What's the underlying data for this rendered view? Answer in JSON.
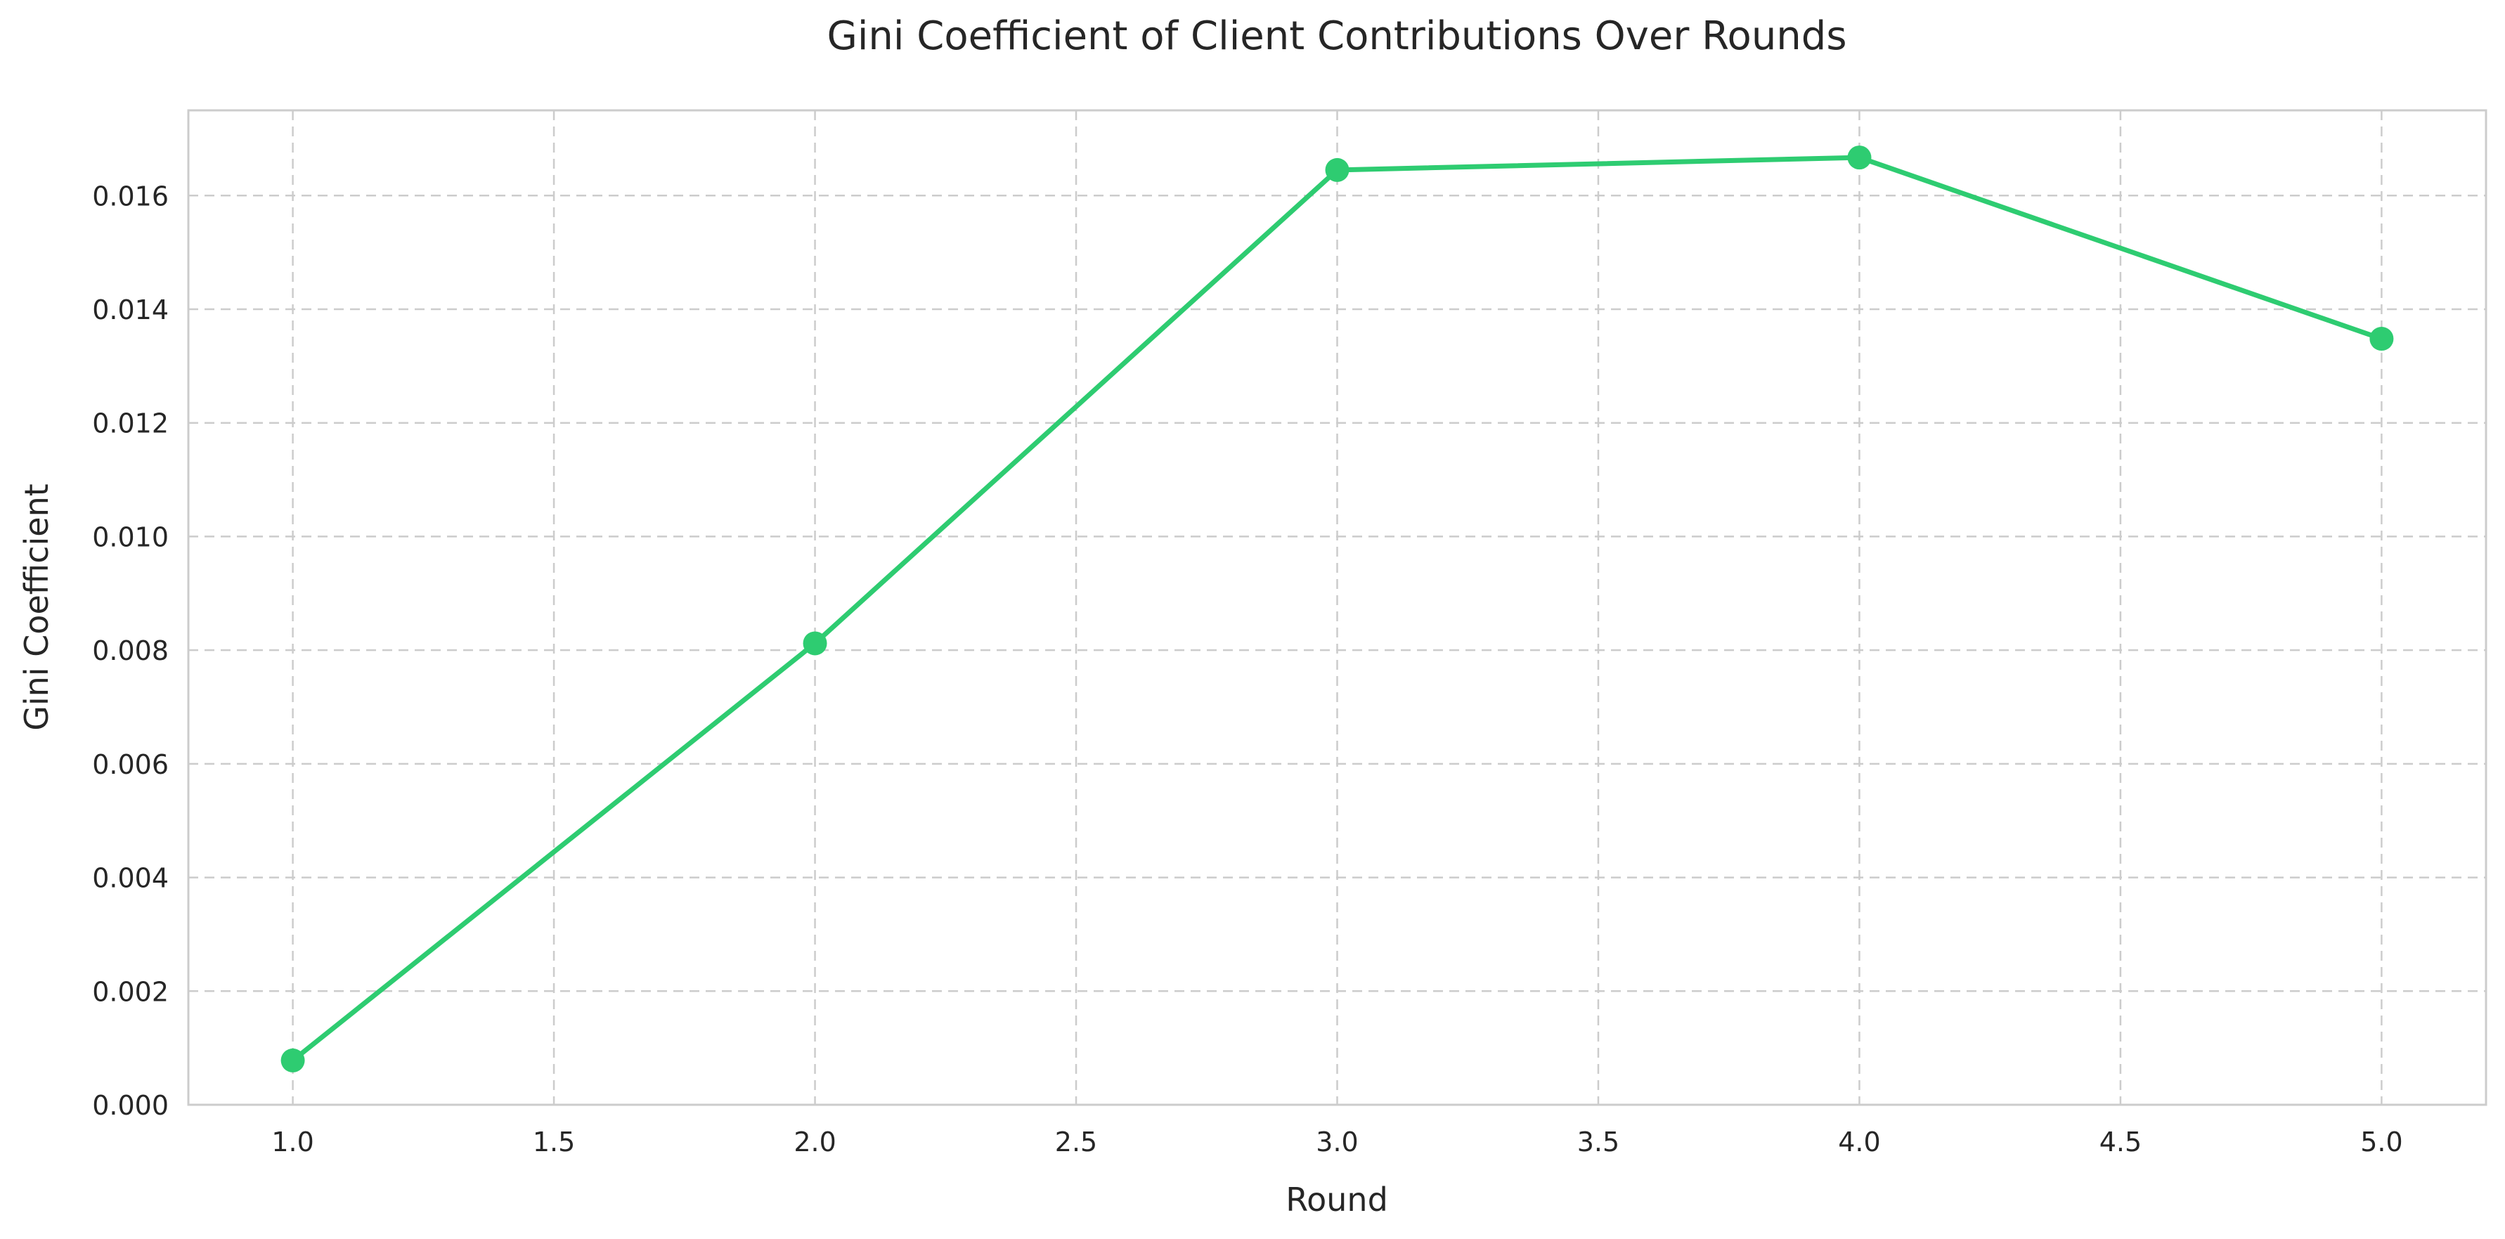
{
  "chart_data": {
    "type": "line",
    "title": "Gini Coefficient of Client Contributions Over Rounds",
    "xlabel": "Round",
    "ylabel": "Gini Coefficient",
    "xlim": [
      0.8,
      5.2
    ],
    "ylim": [
      0,
      0.0175
    ],
    "grid": true,
    "x_ticks": [
      1.0,
      1.5,
      2.0,
      2.5,
      3.0,
      3.5,
      4.0,
      4.5,
      5.0
    ],
    "x_tick_labels": [
      "1.0",
      "1.5",
      "2.0",
      "2.5",
      "3.0",
      "3.5",
      "4.0",
      "4.5",
      "5.0"
    ],
    "y_ticks": [
      0,
      0.002,
      0.004,
      0.006,
      0.008,
      0.01,
      0.012,
      0.014,
      0.016
    ],
    "y_tick_labels": [
      "0.000",
      "0.002",
      "0.004",
      "0.006",
      "0.008",
      "0.010",
      "0.012",
      "0.014",
      "0.016"
    ],
    "series": [
      {
        "x": [
          1,
          2,
          3,
          4,
          5
        ],
        "values": [
          0.00078,
          0.00812,
          0.01645,
          0.01667,
          0.01348
        ],
        "color": "#2ecc71",
        "marker": "circle"
      }
    ]
  }
}
